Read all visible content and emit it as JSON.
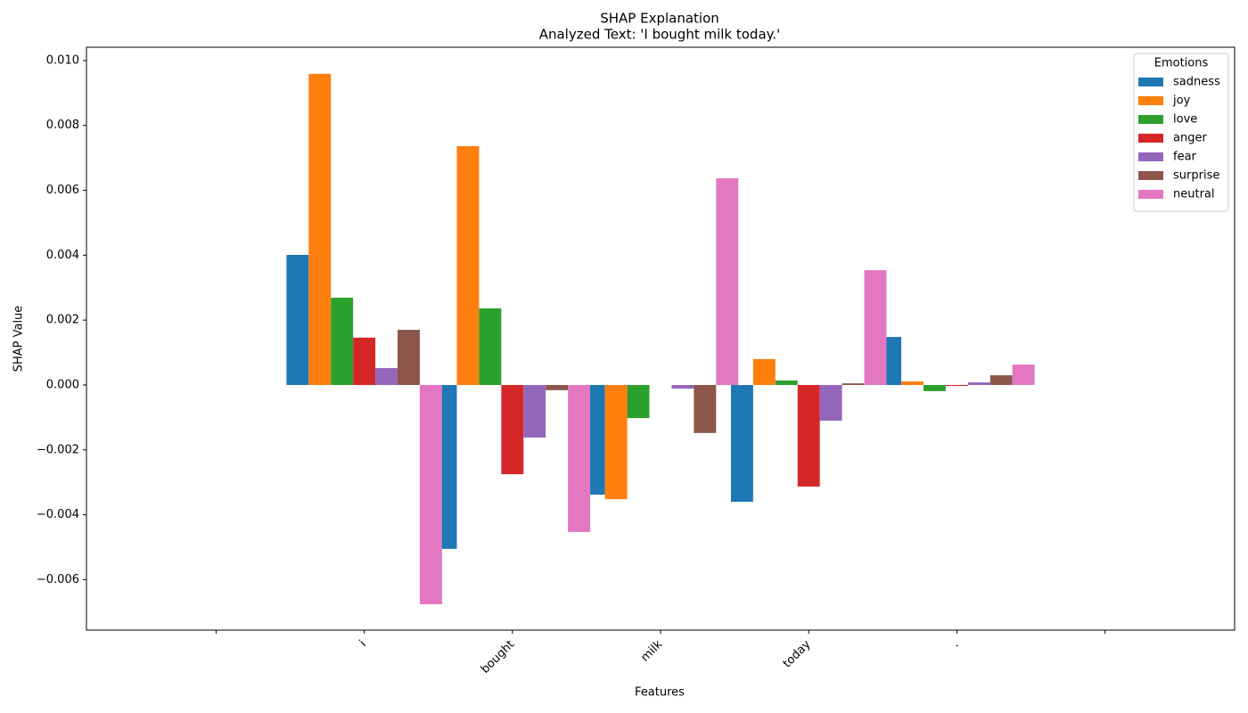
{
  "chart_data": {
    "type": "bar",
    "title": "SHAP Explanation",
    "subtitle": "Analyzed Text: 'I bought milk today.'",
    "x_label": "Features",
    "y_label": "SHAP Value",
    "legend_title": "Emotions",
    "legend_position": "upper right",
    "categories": [
      null,
      "i",
      "bought",
      "milk",
      "today",
      ".",
      null
    ],
    "series": [
      {
        "name": "sadness",
        "color": "#1f77b4",
        "values": [
          0,
          0.00401,
          -0.00505,
          -0.00338,
          -0.0036,
          0.00148,
          0
        ]
      },
      {
        "name": "joy",
        "color": "#ff7f0e",
        "values": [
          0,
          0.00959,
          0.00736,
          -0.00352,
          0.0008,
          0.00011,
          0
        ]
      },
      {
        "name": "love",
        "color": "#2ca02c",
        "values": [
          0,
          0.00269,
          0.00236,
          -0.00102,
          0.00014,
          -0.00019,
          0
        ]
      },
      {
        "name": "anger",
        "color": "#d62728",
        "values": [
          0,
          0.00146,
          -0.00275,
          0,
          -0.00313,
          -3e-05,
          0
        ]
      },
      {
        "name": "fear",
        "color": "#9467bd",
        "values": [
          0,
          0.00052,
          -0.00162,
          -0.00011,
          -0.0011,
          8e-05,
          0
        ]
      },
      {
        "name": "surprise",
        "color": "#8c564b",
        "values": [
          0,
          0.0017,
          -0.00016,
          -0.00148,
          5e-05,
          0.0003,
          0
        ]
      },
      {
        "name": "neutral",
        "color": "#e377c2",
        "values": [
          0,
          -0.00676,
          -0.00453,
          0.00637,
          0.00354,
          0.00063,
          0
        ]
      }
    ],
    "ylim": [
      -0.007555,
      0.01041
    ],
    "yticks": [
      {
        "value": -0.006,
        "label": "−0.006"
      },
      {
        "value": -0.004,
        "label": "−0.004"
      },
      {
        "value": -0.002,
        "label": "−0.002"
      },
      {
        "value": 0,
        "label": "0.000"
      },
      {
        "value": 0.002,
        "label": "0.002"
      },
      {
        "value": 0.004,
        "label": "0.004"
      },
      {
        "value": 0.006,
        "label": "0.006"
      },
      {
        "value": 0.008,
        "label": "0.008"
      },
      {
        "value": 0.01,
        "label": "0.010"
      }
    ],
    "grid": false
  }
}
